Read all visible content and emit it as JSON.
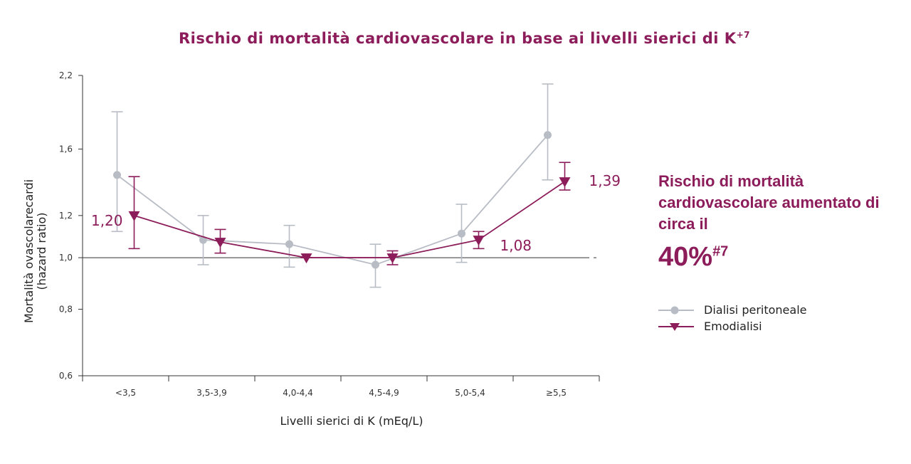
{
  "chart_data": {
    "type": "line",
    "title": "Rischio di mortalità cardiovascolare in base ai livelli sierici di K",
    "title_sup": "+7",
    "xlabel": "Livelli sierici di K (mEq/L)",
    "ylabel_lines": [
      "Mortalità ovascolarecardi",
      "(hazard ratio)"
    ],
    "log_scale_y": true,
    "categories": [
      "<3,5",
      "3,5-3,9",
      "4,0-4,4",
      "4,5-4,9",
      "5,0-5,4",
      "≥5,5"
    ],
    "yticks": [
      {
        "value": 0.6,
        "label": "0,6"
      },
      {
        "value": 0.8,
        "label": "0,8"
      },
      {
        "value": 1.0,
        "label": "1,0"
      },
      {
        "value": 1.2,
        "label": "1,2"
      },
      {
        "value": 1.6,
        "label": "1,6"
      },
      {
        "value": 2.2,
        "label": "2,2"
      }
    ],
    "ylim": [
      0.6,
      2.2
    ],
    "reference_line": 1.0,
    "series": [
      {
        "name": "Dialisi peritoneale",
        "color": "#b8bcc5",
        "marker": "circle",
        "values": [
          1.43,
          1.08,
          1.06,
          0.97,
          1.11,
          1.7
        ],
        "ci_low": [
          1.12,
          0.97,
          0.96,
          0.88,
          0.98,
          1.4
        ],
        "ci_high": [
          1.88,
          1.2,
          1.15,
          1.06,
          1.26,
          2.12
        ]
      },
      {
        "name": "Emodialisi",
        "color": "#8c1d5a",
        "marker": "triangle-down",
        "values": [
          1.2,
          1.07,
          1.0,
          1.0,
          1.08,
          1.39
        ],
        "ci_low": [
          1.04,
          1.02,
          1.0,
          0.97,
          1.04,
          1.34
        ],
        "ci_high": [
          1.42,
          1.13,
          1.0,
          1.03,
          1.12,
          1.51
        ]
      }
    ],
    "annotations": [
      {
        "series": 1,
        "index": 0,
        "label": "1,20",
        "position": "left"
      },
      {
        "series": 1,
        "index": 4,
        "label": "1,08",
        "position": "below-right"
      },
      {
        "series": 1,
        "index": 5,
        "label": "1,39",
        "position": "right"
      }
    ]
  },
  "callout": {
    "text": "Rischio di mortalità cardiovascolare aumentato di circa il",
    "value": "40%",
    "value_sup": "#7"
  },
  "legend": {
    "items": [
      {
        "label": "Dialisi peritoneale",
        "color": "#b8bcc5",
        "icon": "circle-marker-icon"
      },
      {
        "label": "Emodialisi",
        "color": "#8c1d5a",
        "icon": "triangle-down-marker-icon"
      }
    ]
  }
}
